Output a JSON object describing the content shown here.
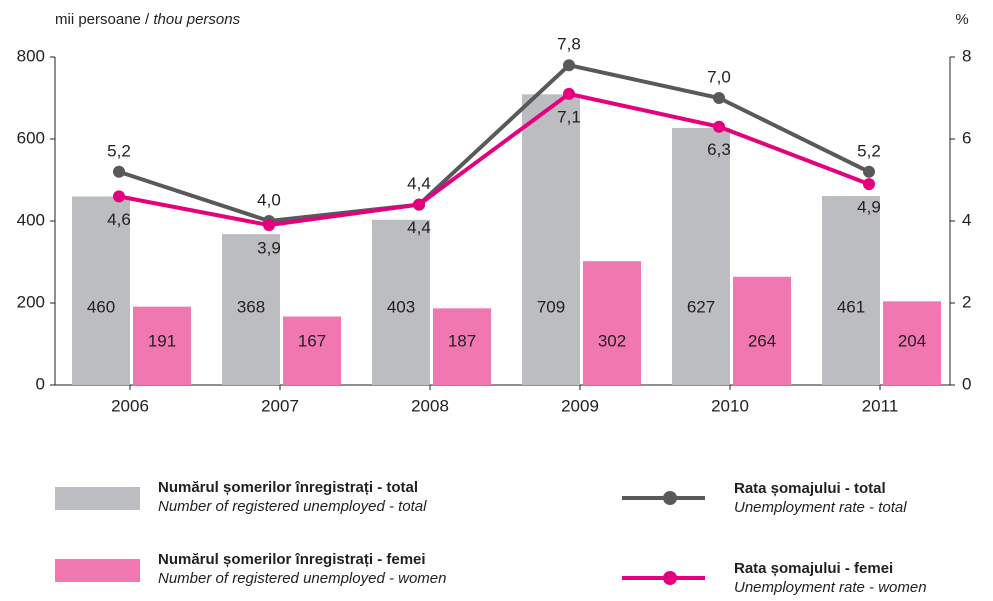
{
  "chart_data": {
    "type": "bar-line",
    "ylabel_ro": "mii persoane /",
    "ylabel_en": "thou persons",
    "y2label": "%",
    "categories": [
      "2006",
      "2007",
      "2008",
      "2009",
      "2010",
      "2011"
    ],
    "series": [
      {
        "name": "Numărul șomerilor înregistrați - total",
        "name_en": "Number of registered unemployed - total",
        "type": "bar",
        "color": "#bcbdc0",
        "values": [
          460,
          368,
          403,
          709,
          627,
          461
        ]
      },
      {
        "name": "Numărul șomerilor înregistrați - femei",
        "name_en": "Number of registered unemployed - women",
        "type": "bar",
        "color": "#f077b0",
        "values": [
          191,
          167,
          187,
          302,
          264,
          204
        ]
      },
      {
        "name": "Rata șomajului - total",
        "name_en": "Unemployment rate - total",
        "type": "line",
        "axis": "y2",
        "color": "#58595b",
        "values": [
          5.2,
          4.0,
          4.4,
          7.8,
          7.0,
          5.2
        ],
        "value_labels": [
          "5,2",
          "4,0",
          "4,4",
          "7,8",
          "7,0",
          "5,2"
        ]
      },
      {
        "name": "Rata șomajului - femei",
        "name_en": "Unemployment rate - women",
        "type": "line",
        "axis": "y2",
        "color": "#e5007e",
        "values": [
          4.6,
          3.9,
          4.4,
          7.1,
          6.3,
          4.9
        ],
        "value_labels": [
          "4,6",
          "3,9",
          "4,4",
          "7,1",
          "6,3",
          "4,9"
        ]
      }
    ],
    "ylim": [
      0,
      800
    ],
    "yticks": [
      0,
      200,
      400,
      600,
      800
    ],
    "y2lim": [
      0,
      8
    ],
    "y2ticks": [
      0,
      2,
      4,
      6,
      8
    ]
  }
}
